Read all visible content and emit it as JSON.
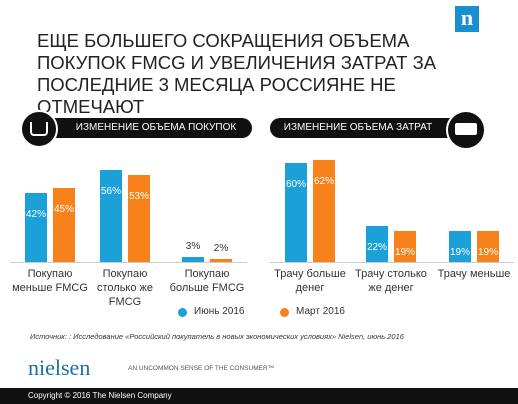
{
  "title": "ЕЩЕ БОЛЬШЕГО СОКРАЩЕНИЯ ОБЪЕМА ПОКУПОК FMCG И УВЕЛИЧЕНИЯ ЗАТРАТ ЗА ПОСЛЕДНИЕ 3 МЕСЯЦА РОССИЯНЕ НЕ ОТМЕЧАЮТ",
  "brand_mark": "n",
  "chart_data": [
    {
      "type": "bar",
      "title": "ИЗМЕНЕНИЕ ОБЪЕМА ПОКУПОК",
      "categories": [
        "Покупаю меньше FMCG",
        "Покупаю столько же FMCG",
        "Покупаю больше FMCG"
      ],
      "series": [
        {
          "name": "Июнь 2016",
          "color": "#1ba0d8",
          "values": [
            42,
            56,
            3
          ],
          "value_labels": [
            "42%",
            "56%",
            "3%"
          ]
        },
        {
          "name": "Март 2016",
          "color": "#f7821b",
          "values": [
            45,
            53,
            2
          ],
          "value_labels": [
            "45%",
            "53%",
            "2%"
          ]
        }
      ]
    },
    {
      "type": "bar",
      "title": "ИЗМЕНЕНИЕ ОБЪЕМА ЗАТРАТ",
      "categories": [
        "Трачу больше денег",
        "Трачу столько же денег",
        "Трачу меньше"
      ],
      "series": [
        {
          "color": "#1ba0d8",
          "values": [
            60,
            22,
            19
          ],
          "value_labels": [
            "60%",
            "22%",
            "19%"
          ]
        },
        {
          "color": "#f7821b",
          "values": [
            62,
            19,
            19
          ],
          "value_labels": [
            "62%",
            "19%",
            "19%"
          ]
        }
      ]
    }
  ],
  "source": "Источник: : Исследование «Российский покупатель в новых экономических условиях» Nielsen, июнь 2016",
  "logo": "nielsen",
  "tagline": "AN UNCOMMON SENSE OF THE CONSUMER™",
  "copyright": "Copyright © 2016 The Nielsen Company"
}
